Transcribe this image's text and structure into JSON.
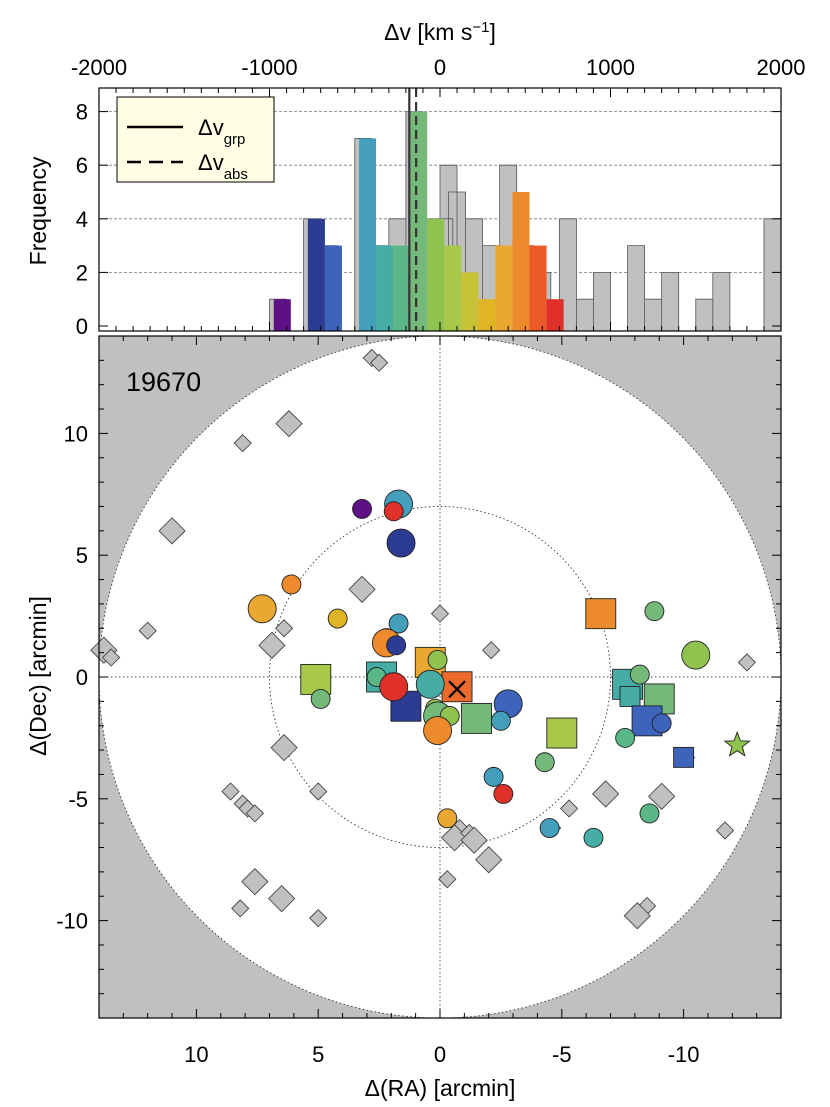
{
  "chart_data": [
    {
      "type": "histogram",
      "xlabel": "Δv [km s⁻¹]",
      "xlabel_parts": {
        "prefix": "Δv [km s",
        "sup": "−1",
        "suffix": "]"
      },
      "ylabel": "Frequency",
      "xlim": [
        -2000,
        2000
      ],
      "ylim": [
        0,
        9
      ],
      "x_ticks": [
        -2000,
        -1000,
        0,
        1000,
        2000
      ],
      "y_ticks": [
        0,
        2,
        4,
        6,
        8
      ],
      "grid": "horizontal dashed at 2, 4, 6, 8",
      "bin_width": 100,
      "all_members": {
        "color": "#c0c0c0",
        "bins": [
          {
            "x0": -1000,
            "count": 1
          },
          {
            "x0": -800,
            "count": 4
          },
          {
            "x0": -700,
            "count": 3
          },
          {
            "x0": -500,
            "count": 7
          },
          {
            "x0": -400,
            "count": 3
          },
          {
            "x0": -300,
            "count": 4
          },
          {
            "x0": -200,
            "count": 8
          },
          {
            "x0": -100,
            "count": 4
          },
          {
            "x0": -25,
            "count": 4
          },
          {
            "x0": 0,
            "count": 6
          },
          {
            "x0": 50,
            "count": 5
          },
          {
            "x0": 150,
            "count": 4
          },
          {
            "x0": 250,
            "count": 3
          },
          {
            "x0": 350,
            "count": 6
          },
          {
            "x0": 450,
            "count": 3
          },
          {
            "x0": 550,
            "count": 2
          },
          {
            "x0": 700,
            "count": 4
          },
          {
            "x0": 800,
            "count": 1
          },
          {
            "x0": 900,
            "count": 2
          },
          {
            "x0": 1100,
            "count": 3
          },
          {
            "x0": 1200,
            "count": 1
          },
          {
            "x0": 1300,
            "count": 2
          },
          {
            "x0": 1500,
            "count": 1
          },
          {
            "x0": 1600,
            "count": 2
          },
          {
            "x0": 1900,
            "count": 4
          }
        ]
      },
      "colored_members": [
        {
          "x0": -975,
          "x1": -875,
          "count": 1,
          "color": "#5e1085"
        },
        {
          "x0": -775,
          "x1": -675,
          "count": 4,
          "color": "#2c3c93"
        },
        {
          "x0": -675,
          "x1": -575,
          "count": 3,
          "color": "#3d63ba"
        },
        {
          "x0": -475,
          "x1": -375,
          "count": 7,
          "color": "#449fbd"
        },
        {
          "x0": -375,
          "x1": -275,
          "count": 3,
          "color": "#45ada5"
        },
        {
          "x0": -275,
          "x1": -175,
          "count": 3,
          "color": "#5bb688"
        },
        {
          "x0": -175,
          "x1": -75,
          "count": 8,
          "color": "#74b87a"
        },
        {
          "x0": -75,
          "x1": 25,
          "count": 4,
          "color": "#8fc24f"
        },
        {
          "x0": 25,
          "x1": 125,
          "count": 3,
          "color": "#a8c84a"
        },
        {
          "x0": 125,
          "x1": 225,
          "count": 2,
          "color": "#c8c236"
        },
        {
          "x0": 225,
          "x1": 325,
          "count": 1,
          "color": "#dfb524"
        },
        {
          "x0": 325,
          "x1": 425,
          "count": 3,
          "color": "#eaa832"
        },
        {
          "x0": 425,
          "x1": 525,
          "count": 5,
          "color": "#ec8a2c"
        },
        {
          "x0": 525,
          "x1": 625,
          "count": 3,
          "color": "#ec5a2a"
        },
        {
          "x0": 625,
          "x1": 725,
          "count": 1,
          "color": "#e0302a"
        }
      ],
      "reference_lines": [
        {
          "name": "Δv_grp",
          "value": -180,
          "style": "solid"
        },
        {
          "name": "Δv_abs",
          "value": -140,
          "style": "dashed"
        }
      ],
      "legend": {
        "placement": "top-left",
        "entries": [
          {
            "label": "Δv",
            "sub": "grp",
            "style": "solid"
          },
          {
            "label": "Δv",
            "sub": "abs",
            "style": "dashed"
          }
        ]
      }
    },
    {
      "type": "scatter",
      "title": "19670",
      "xlabel": "Δ(RA) [arcmin]",
      "ylabel": "Δ(Dec) [arcmin]",
      "xlim": [
        14,
        -14
      ],
      "ylim": [
        -14,
        14
      ],
      "x_ticks": [
        10,
        5,
        0,
        -5,
        -10
      ],
      "y_ticks": [
        10,
        5,
        0,
        -5,
        -10
      ],
      "circles_arcmin": [
        7,
        14
      ],
      "background": "#c0c0c0",
      "grid": "dotted lines at x=0 and y=0",
      "grey_diamonds": [
        {
          "x": 2.8,
          "y": 13.1,
          "s": 1
        },
        {
          "x": 2.5,
          "y": 12.9,
          "s": 1
        },
        {
          "x": 6.2,
          "y": 10.4,
          "s": 2
        },
        {
          "x": 8.1,
          "y": 9.6,
          "s": 1
        },
        {
          "x": 11.0,
          "y": 6.0,
          "s": 2
        },
        {
          "x": 12.0,
          "y": 1.9,
          "s": 1
        },
        {
          "x": 13.8,
          "y": 1.1,
          "s": 2
        },
        {
          "x": 13.5,
          "y": 0.8,
          "s": 1
        },
        {
          "x": 6.4,
          "y": 2.0,
          "s": 1
        },
        {
          "x": 6.9,
          "y": 1.3,
          "s": 2
        },
        {
          "x": 3.2,
          "y": 3.6,
          "s": 2
        },
        {
          "x": 0.0,
          "y": 2.6,
          "s": 1
        },
        {
          "x": -2.1,
          "y": 1.1,
          "s": 1
        },
        {
          "x": 6.4,
          "y": -2.9,
          "s": 2
        },
        {
          "x": 5.0,
          "y": -4.7,
          "s": 1
        },
        {
          "x": 8.6,
          "y": -4.7,
          "s": 1
        },
        {
          "x": 8.1,
          "y": -5.2,
          "s": 1
        },
        {
          "x": 7.9,
          "y": -5.4,
          "s": 1
        },
        {
          "x": 7.6,
          "y": -5.6,
          "s": 1
        },
        {
          "x": 7.6,
          "y": -8.4,
          "s": 2
        },
        {
          "x": 8.2,
          "y": -9.5,
          "s": 1
        },
        {
          "x": 6.5,
          "y": -9.1,
          "s": 2
        },
        {
          "x": 5.0,
          "y": -9.9,
          "s": 1
        },
        {
          "x": -0.8,
          "y": -6.2,
          "s": 1
        },
        {
          "x": -0.6,
          "y": -6.6,
          "s": 2
        },
        {
          "x": -1.2,
          "y": -6.4,
          "s": 1
        },
        {
          "x": -1.4,
          "y": -6.7,
          "s": 2
        },
        {
          "x": -2.0,
          "y": -7.5,
          "s": 2
        },
        {
          "x": -0.3,
          "y": -8.3,
          "s": 1
        },
        {
          "x": -4.6,
          "y": -6.2,
          "s": 1
        },
        {
          "x": -5.3,
          "y": -5.4,
          "s": 1
        },
        {
          "x": -6.8,
          "y": -4.8,
          "s": 2
        },
        {
          "x": -8.5,
          "y": -9.4,
          "s": 1
        },
        {
          "x": -8.1,
          "y": -9.8,
          "s": 2
        },
        {
          "x": -9.1,
          "y": -4.9,
          "s": 2
        },
        {
          "x": -10.1,
          "y": -3.3,
          "s": 1
        },
        {
          "x": -11.7,
          "y": -6.3,
          "s": 1
        },
        {
          "x": -12.6,
          "y": 0.6,
          "s": 1
        }
      ],
      "circles": [
        {
          "x": 3.2,
          "y": 6.9,
          "s": 1,
          "color": "#5e1085"
        },
        {
          "x": 1.7,
          "y": 7.1,
          "s": 2,
          "color": "#449fbd"
        },
        {
          "x": 1.9,
          "y": 6.8,
          "s": 1,
          "color": "#e0302a"
        },
        {
          "x": 1.6,
          "y": 5.5,
          "s": 2,
          "color": "#2c3c93"
        },
        {
          "x": 6.1,
          "y": 3.8,
          "s": 1,
          "color": "#ec8a2c"
        },
        {
          "x": 7.3,
          "y": 2.8,
          "s": 2,
          "color": "#eaa832"
        },
        {
          "x": 4.2,
          "y": 2.4,
          "s": 1,
          "color": "#dfb524"
        },
        {
          "x": 1.7,
          "y": 2.2,
          "s": 1,
          "color": "#449fbd"
        },
        {
          "x": 2.2,
          "y": 1.6,
          "s": 1,
          "color": "#74b87a"
        },
        {
          "x": 2.2,
          "y": 1.4,
          "s": 2,
          "color": "#ec8a2c"
        },
        {
          "x": 1.8,
          "y": 1.3,
          "s": 1,
          "color": "#2c3c93"
        },
        {
          "x": 0.1,
          "y": 0.7,
          "s": 1,
          "color": "#8fc24f"
        },
        {
          "x": 2.6,
          "y": 0.0,
          "s": 1,
          "color": "#5bb688"
        },
        {
          "x": 1.9,
          "y": -0.4,
          "s": 1,
          "color": "#5bb688"
        },
        {
          "x": 1.9,
          "y": -0.4,
          "s": 2,
          "color": "#e0302a"
        },
        {
          "x": 0.4,
          "y": -0.3,
          "s": 2,
          "color": "#45ada5"
        },
        {
          "x": 0.2,
          "y": -1.3,
          "s": 1,
          "color": "#8fc24f"
        },
        {
          "x": 0.1,
          "y": -1.6,
          "s": 2,
          "color": "#74b87a"
        },
        {
          "x": -0.4,
          "y": -1.6,
          "s": 1,
          "color": "#8fc24f"
        },
        {
          "x": 0.1,
          "y": -2.2,
          "s": 2,
          "color": "#ec8a2c"
        },
        {
          "x": 4.9,
          "y": -0.9,
          "s": 1,
          "color": "#74b87a"
        },
        {
          "x": -2.8,
          "y": -1.1,
          "s": 2,
          "color": "#3d63ba"
        },
        {
          "x": -2.5,
          "y": -1.8,
          "s": 1,
          "color": "#449fbd"
        },
        {
          "x": -2.2,
          "y": -4.1,
          "s": 1,
          "color": "#449fbd"
        },
        {
          "x": -2.6,
          "y": -4.8,
          "s": 1,
          "color": "#e0302a"
        },
        {
          "x": -4.3,
          "y": -3.5,
          "s": 1,
          "color": "#74b87a"
        },
        {
          "x": -0.3,
          "y": -5.8,
          "s": 1,
          "color": "#eaa832"
        },
        {
          "x": -4.5,
          "y": -6.2,
          "s": 1,
          "color": "#449fbd"
        },
        {
          "x": -6.3,
          "y": -6.6,
          "s": 1,
          "color": "#45ada5"
        },
        {
          "x": -8.8,
          "y": 2.7,
          "s": 1,
          "color": "#74b87a"
        },
        {
          "x": -10.5,
          "y": 0.9,
          "s": 2,
          "color": "#8fc24f"
        },
        {
          "x": -8.2,
          "y": 0.1,
          "s": 1,
          "color": "#74b87a"
        },
        {
          "x": -9.1,
          "y": -1.9,
          "s": 1,
          "color": "#3d63ba"
        },
        {
          "x": -7.6,
          "y": -2.5,
          "s": 1,
          "color": "#5bb688"
        },
        {
          "x": -8.6,
          "y": -5.6,
          "s": 1,
          "color": "#5bb688"
        }
      ],
      "squares": [
        {
          "x": 2.4,
          "y": 0.0,
          "s": 2,
          "color": "#45ada5"
        },
        {
          "x": 1.4,
          "y": -1.2,
          "s": 2,
          "color": "#2c3c93"
        },
        {
          "x": 5.1,
          "y": -0.1,
          "s": 2,
          "color": "#a8c84a"
        },
        {
          "x": 0.4,
          "y": 0.6,
          "s": 2,
          "color": "#eaa832"
        },
        {
          "x": -0.7,
          "y": -0.4,
          "s": 2,
          "color": "#ec6a2c"
        },
        {
          "x": -1.5,
          "y": -1.7,
          "s": 2,
          "color": "#74b87a"
        },
        {
          "x": -5.0,
          "y": -2.3,
          "s": 2,
          "color": "#a8c84a"
        },
        {
          "x": -6.6,
          "y": 2.6,
          "s": 2,
          "color": "#ec8a2c"
        },
        {
          "x": -7.7,
          "y": -0.3,
          "s": 2,
          "color": "#45ada5"
        },
        {
          "x": -7.8,
          "y": -0.8,
          "s": 1,
          "color": "#45ada5"
        },
        {
          "x": -9.0,
          "y": -0.9,
          "s": 2,
          "color": "#74b87a"
        },
        {
          "x": -8.5,
          "y": -1.8,
          "s": 2,
          "color": "#3d63ba"
        },
        {
          "x": -10.0,
          "y": -3.3,
          "s": 1,
          "color": "#3d63ba"
        }
      ],
      "star": {
        "x": -12.2,
        "y": -2.8,
        "color": "#8fc24f"
      },
      "cross": {
        "x": -0.7,
        "y": -0.5
      }
    }
  ]
}
